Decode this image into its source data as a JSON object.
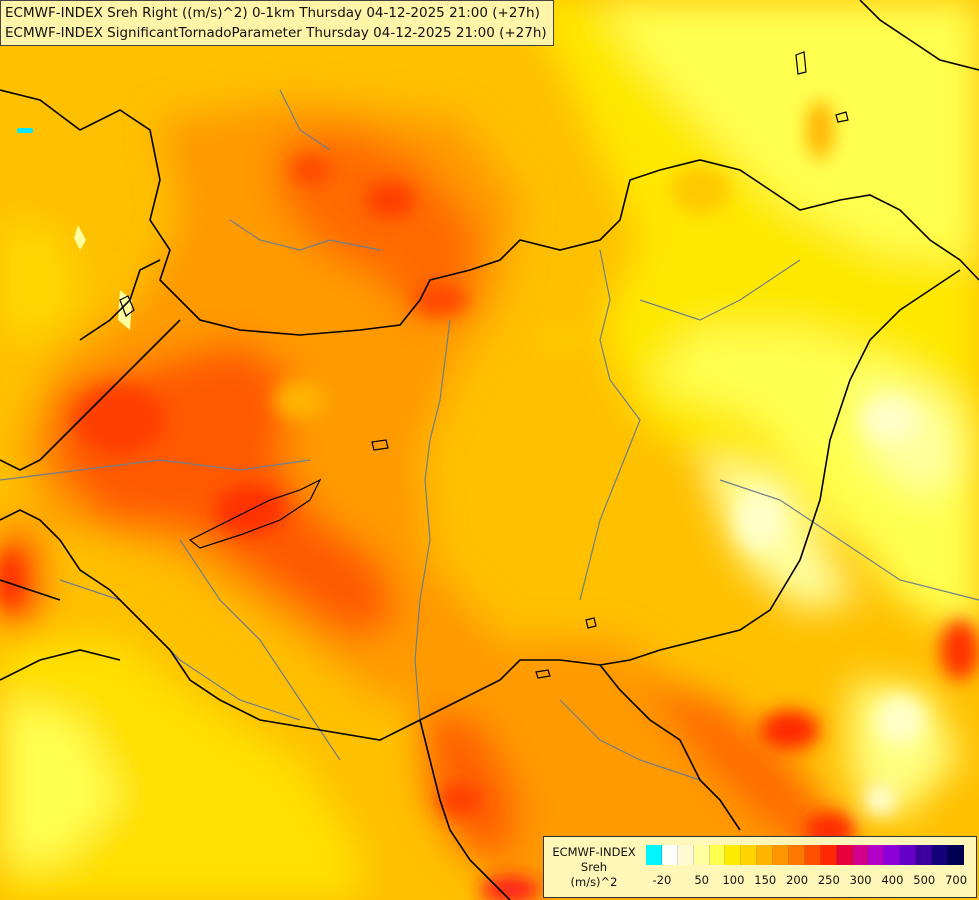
{
  "map": {
    "title_lines": [
      "ECMWF-INDEX Sreh Right ((m/s)^2) 0-1km Thursday 04-12-2025 21:00 (+27h)",
      "ECMWF-INDEX SignificantTornadoParameter Thursday 04-12-2025 21:00 (+27h)"
    ],
    "field": "Storm relative helicity 0-1km",
    "border_color": "#000000",
    "river_color": "#6e7d8c"
  },
  "legend": {
    "title_lines": [
      "ECMWF-INDEX",
      "Sreh",
      "(m/s)^2"
    ],
    "colors": [
      "#00f5ff",
      "#ffffff",
      "#fffad0",
      "#ffffa0",
      "#ffff50",
      "#ffeb00",
      "#ffd200",
      "#ffb400",
      "#ff9600",
      "#ff7800",
      "#ff5000",
      "#ff2800",
      "#e6003c",
      "#d2008c",
      "#b400c8",
      "#8c00dc",
      "#6400c8",
      "#3c00a0",
      "#140078",
      "#000050"
    ],
    "labels": [
      "-20",
      "50",
      "100",
      "150",
      "200",
      "250",
      "300",
      "400",
      "500",
      "700"
    ],
    "label_positions": [
      0.5,
      3,
      5,
      7,
      9,
      11,
      13,
      15,
      17,
      19
    ]
  }
}
